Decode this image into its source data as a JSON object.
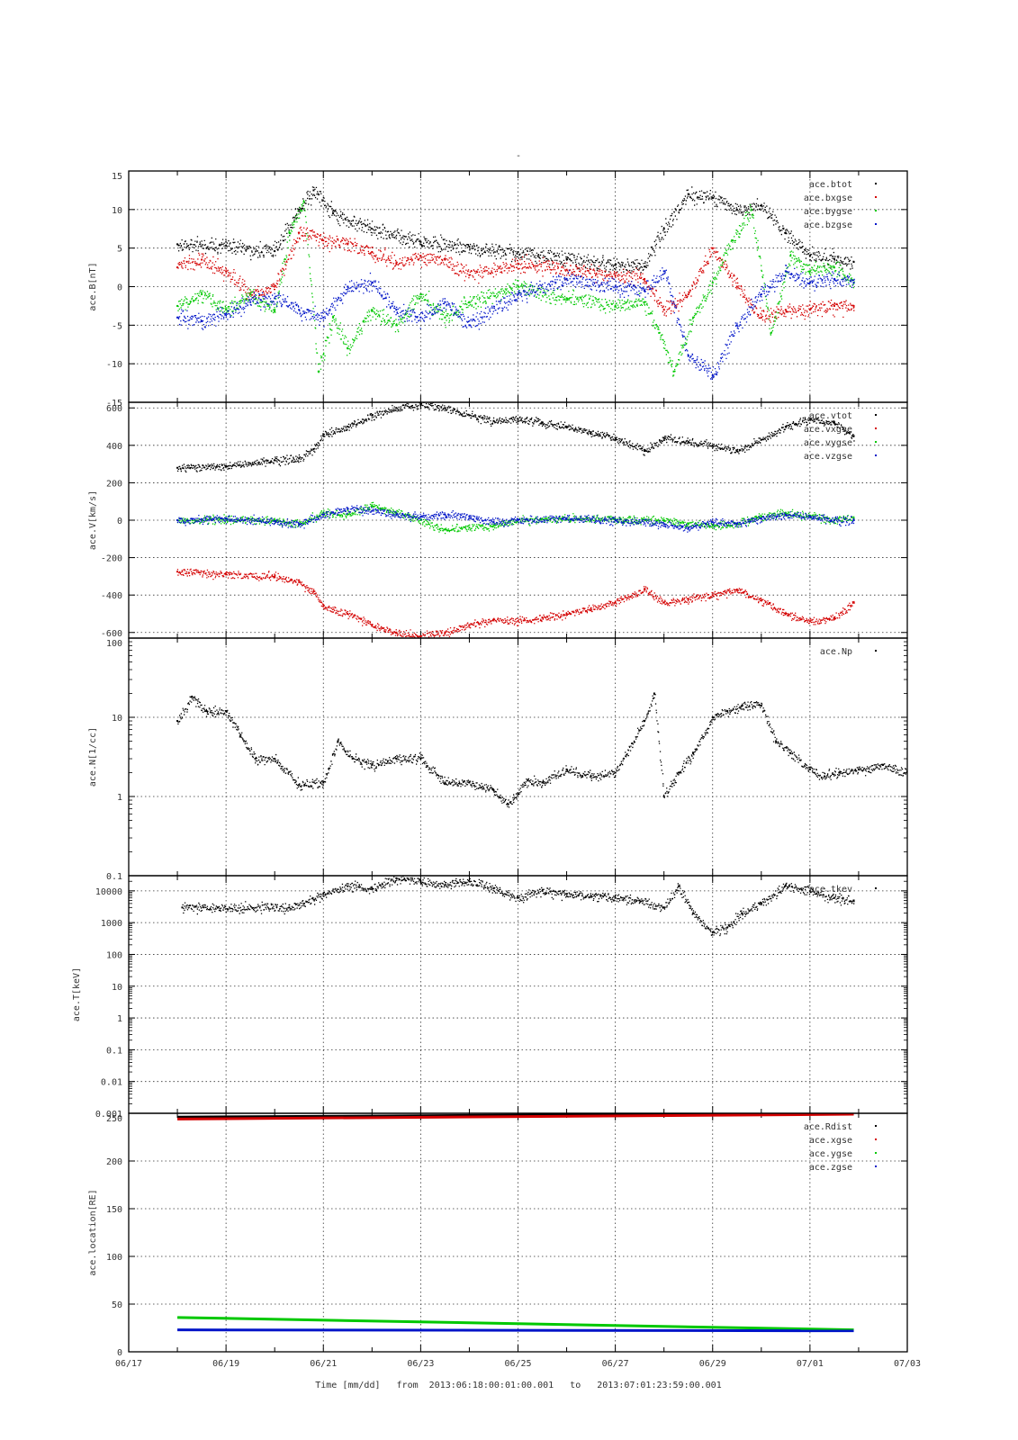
{
  "figure": {
    "title": "-",
    "time_axis": {
      "xlabel": "Time [mm/dd]",
      "range_prefix": "from",
      "range_joiner": "to",
      "start": "2013:06:18:00:01:00.001",
      "end": "2013:07:01:23:59:00.001",
      "ticks": [
        "06/17",
        "06/19",
        "06/21",
        "06/23",
        "06/25",
        "06/27",
        "06/29",
        "07/01",
        "07/03"
      ]
    }
  },
  "chart_data": [
    {
      "type": "scatter",
      "ylabel": "ace.B[nT]",
      "ylim": [
        -15,
        15
      ],
      "yscale": "linear",
      "yticks": [
        "15",
        "10",
        "5",
        "0",
        "-5",
        "-10",
        "-15"
      ],
      "xlim": [
        0,
        16
      ],
      "x_unit": "days since 06/17 00:00",
      "grid": true,
      "legend_position": "top-right",
      "series": [
        {
          "name": "ace.btot",
          "color": "#000000",
          "x": [
            1,
            2,
            3,
            3.5,
            3.8,
            4.2,
            5,
            6,
            7,
            8,
            9,
            10,
            10.6,
            11,
            11.5,
            12,
            12.5,
            13,
            13.5,
            14,
            14.5,
            14.9
          ],
          "y": [
            5.5,
            5.3,
            4.6,
            10,
            12.5,
            9.5,
            7.5,
            5.8,
            5.2,
            4.5,
            3.6,
            2.8,
            2.6,
            7.5,
            12,
            11.5,
            10,
            10.5,
            7,
            4,
            3.6,
            3.2
          ]
        },
        {
          "name": "ace.bxgse",
          "color": "#d40000",
          "x": [
            1,
            1.5,
            2,
            2.5,
            3,
            3.5,
            4,
            4.5,
            5,
            5.5,
            6,
            6.5,
            7,
            8,
            9,
            10,
            10.6,
            11,
            11.5,
            12,
            12.5,
            13,
            13.5,
            14,
            14.5,
            14.9
          ],
          "y": [
            2.5,
            3.5,
            2,
            -1,
            0,
            7,
            6,
            5.5,
            4.5,
            3,
            4,
            3.5,
            1.5,
            3,
            2.2,
            1.5,
            1,
            -3,
            -1,
            5,
            0,
            -4,
            -3,
            -3,
            -2.5,
            -2.5
          ]
        },
        {
          "name": "ace.bygse",
          "color": "#00c800",
          "x": [
            1,
            1.5,
            2,
            2.5,
            3,
            3.3,
            3.6,
            3.9,
            4.2,
            4.5,
            5,
            5.5,
            6,
            6.5,
            7,
            8,
            9,
            10,
            10.6,
            10.9,
            11.2,
            11.6,
            12,
            12.4,
            12.8,
            13.2,
            13.6,
            14,
            14.5,
            14.9
          ],
          "y": [
            -2.5,
            -1,
            -3,
            -1,
            -3,
            7,
            11,
            -11,
            -4,
            -8,
            -3,
            -5,
            -1,
            -4,
            -2,
            0,
            -1.5,
            -2.5,
            -2,
            -6,
            -11,
            -4,
            0.5,
            6,
            10,
            -6,
            4,
            2,
            2.5,
            0.5
          ]
        },
        {
          "name": "ace.bzgse",
          "color": "#0014c8",
          "x": [
            1,
            1.5,
            2,
            2.5,
            3,
            3.5,
            4,
            4.5,
            5,
            5.5,
            6,
            6.5,
            7,
            8,
            9,
            10,
            10.6,
            11,
            11.5,
            12,
            12.5,
            13,
            13.5,
            14,
            14.5,
            14.9
          ],
          "y": [
            -4,
            -4.5,
            -3.5,
            -2,
            -1.5,
            -3,
            -4,
            0,
            0.5,
            -3,
            -4,
            -2,
            -5,
            -1,
            1,
            0,
            -0.5,
            2,
            -9,
            -11.5,
            -5,
            -1,
            2,
            0.5,
            1,
            0.5
          ]
        }
      ]
    },
    {
      "type": "scatter",
      "ylabel": "ace.V[km/s]",
      "ylim": [
        -630,
        630
      ],
      "yscale": "linear",
      "yticks": [
        "600",
        "400",
        "200",
        "0",
        "-200",
        "-400",
        "-600"
      ],
      "xlim": [
        0,
        16
      ],
      "x_unit": "days since 06/17 00:00",
      "grid": true,
      "legend_position": "top-right",
      "series": [
        {
          "name": "ace.vtot",
          "color": "#000000",
          "x": [
            1,
            2,
            3,
            3.5,
            3.8,
            4,
            4.5,
            5,
            5.5,
            6,
            6.5,
            7,
            7.5,
            8,
            8.5,
            9,
            9.5,
            10,
            10.6,
            11,
            11.5,
            12,
            12.5,
            13,
            13.5,
            14,
            14.5,
            14.9
          ],
          "y": [
            280,
            290,
            320,
            330,
            380,
            460,
            500,
            560,
            600,
            620,
            600,
            560,
            530,
            540,
            520,
            500,
            470,
            440,
            370,
            440,
            420,
            400,
            370,
            430,
            500,
            540,
            520,
            450
          ]
        },
        {
          "name": "ace.vxgse",
          "color": "#d40000",
          "x": [
            1,
            2,
            3,
            3.5,
            3.8,
            4,
            4.5,
            5,
            5.5,
            6,
            6.5,
            7,
            7.5,
            8,
            8.5,
            9,
            9.5,
            10,
            10.6,
            11,
            11.5,
            12,
            12.5,
            13,
            13.5,
            14,
            14.5,
            14.9
          ],
          "y": [
            -275,
            -290,
            -300,
            -330,
            -380,
            -460,
            -500,
            -560,
            -600,
            -620,
            -600,
            -560,
            -530,
            -540,
            -520,
            -500,
            -470,
            -440,
            -370,
            -440,
            -420,
            -400,
            -370,
            -430,
            -500,
            -540,
            -520,
            -440
          ]
        },
        {
          "name": "ace.vygse",
          "color": "#00c800",
          "x": [
            1,
            2,
            3,
            3.5,
            4,
            4.5,
            5,
            5.5,
            6,
            6.5,
            7,
            7.5,
            8,
            9,
            10,
            11,
            11.5,
            12,
            12.5,
            13,
            13.5,
            14,
            14.5,
            14.9
          ],
          "y": [
            0,
            5,
            0,
            -20,
            40,
            30,
            80,
            40,
            0,
            -50,
            -40,
            -30,
            0,
            10,
            5,
            0,
            -20,
            -30,
            -20,
            20,
            40,
            20,
            0,
            10
          ]
        },
        {
          "name": "ace.vzgse",
          "color": "#0014c8",
          "x": [
            1,
            2,
            3,
            3.5,
            4,
            4.5,
            5,
            5.5,
            6,
            6.5,
            7,
            7.5,
            8,
            9,
            10,
            11,
            11.5,
            12,
            12.5,
            13,
            13.5,
            14,
            14.5,
            14.9
          ],
          "y": [
            0,
            10,
            -5,
            -20,
            30,
            60,
            50,
            30,
            20,
            30,
            20,
            -10,
            0,
            10,
            0,
            -20,
            -40,
            -10,
            -20,
            10,
            30,
            20,
            0,
            0
          ]
        }
      ]
    },
    {
      "type": "scatter",
      "ylabel": "ace.N[1/cc]",
      "ylim": [
        0.1,
        100
      ],
      "yscale": "log",
      "yticks": [
        "100",
        "10",
        "1",
        "0.1"
      ],
      "xlim": [
        0,
        16
      ],
      "x_unit": "days since 06/17 00:00",
      "grid": true,
      "legend_position": "top-right",
      "series": [
        {
          "name": "ace.Np",
          "color": "#000000",
          "x": [
            1,
            1.3,
            1.6,
            2,
            2.3,
            2.6,
            3,
            3.5,
            4,
            4.3,
            4.6,
            5,
            5.5,
            6,
            6.5,
            7,
            7.5,
            7.8,
            8,
            8.2,
            8.5,
            9,
            9.5,
            10,
            10.6,
            10.8,
            11,
            11.3,
            11.6,
            12,
            12.3,
            12.6,
            13,
            13.3,
            13.6,
            14,
            14.3,
            14.6,
            15,
            15.5,
            16
          ],
          "y": [
            9,
            18,
            12,
            12,
            6,
            3,
            3,
            1.4,
            1.5,
            5,
            3,
            2.5,
            3,
            3,
            1.5,
            1.5,
            1.2,
            0.8,
            1.1,
            1.6,
            1.5,
            2.2,
            1.8,
            2,
            9,
            20,
            1,
            2,
            3.5,
            10,
            12,
            14,
            14,
            5,
            3.5,
            2.2,
            1.8,
            2,
            2.2,
            2.5,
            2
          ]
        }
      ]
    },
    {
      "type": "scatter",
      "ylabel": "ace.T[keV]",
      "ylim": [
        0.001,
        30000
      ],
      "yscale": "log",
      "yticks": [
        "10000",
        "1000",
        "100",
        "10",
        "1",
        "0.1",
        "0.01",
        "0.001"
      ],
      "xlim": [
        0,
        16
      ],
      "x_unit": "days since 06/17 00:00",
      "grid": true,
      "legend_position": "top-right",
      "series": [
        {
          "name": "ace.tkev",
          "color": "#000000",
          "x": [
            1.1,
            3.3,
            3.6,
            4,
            4.5,
            5,
            5.5,
            6,
            6.5,
            7,
            7.5,
            8,
            8.5,
            9,
            9.5,
            10,
            10.5,
            11,
            11.3,
            11.6,
            12,
            12.3,
            12.6,
            13,
            13.5,
            14,
            14.5,
            14.9
          ],
          "y": [
            3000,
            3000,
            4000,
            8000,
            14000,
            12000,
            25000,
            20000,
            15000,
            20000,
            12000,
            6000,
            10000,
            8000,
            7000,
            6000,
            5000,
            3000,
            14000,
            2000,
            500,
            700,
            2000,
            4000,
            15000,
            10000,
            6000,
            5000
          ]
        }
      ]
    },
    {
      "type": "line",
      "ylabel": "ace.location[RE]",
      "ylim": [
        0,
        250
      ],
      "yscale": "linear",
      "yticks": [
        "250",
        "200",
        "150",
        "100",
        "50",
        "0"
      ],
      "xlim": [
        0,
        16
      ],
      "x_unit": "days since 06/17 00:00",
      "grid": true,
      "legend_position": "top-right",
      "series": [
        {
          "name": "ace.Rdist",
          "color": "#000000",
          "x": [
            1,
            14.9
          ],
          "y": [
            246,
            250
          ]
        },
        {
          "name": "ace.xgse",
          "color": "#d40000",
          "x": [
            1,
            14.9
          ],
          "y": [
            244,
            249
          ]
        },
        {
          "name": "ace.ygse",
          "color": "#00c800",
          "x": [
            1,
            14.9
          ],
          "y": [
            36,
            23
          ]
        },
        {
          "name": "ace.zgse",
          "color": "#0014c8",
          "x": [
            1,
            14.9
          ],
          "y": [
            23,
            22
          ]
        }
      ]
    }
  ]
}
